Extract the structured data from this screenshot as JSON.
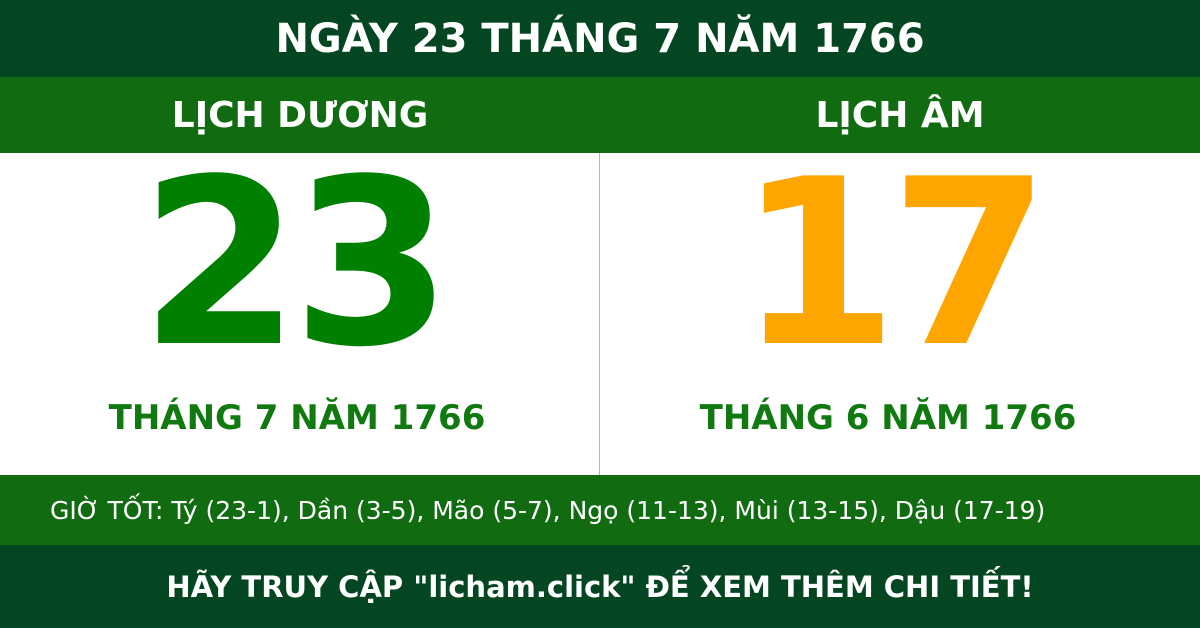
{
  "title": "NGÀY 23 THÁNG 7 NĂM 1766",
  "solar": {
    "label": "LỊCH DƯƠNG",
    "day": "23",
    "month_year": "THÁNG 7 NĂM 1766"
  },
  "lunar": {
    "label": "LỊCH ÂM",
    "day": "17",
    "month_year": "THÁNG 6 NĂM 1766"
  },
  "good_hours": "GIỜ TỐT: Tý (23-1), Dần (3-5), Mão (5-7), Ngọ (11-13), Mùi (13-15), Dậu (17-19)",
  "footer": "HÃY TRUY CẬP \"licham.click\" ĐỂ XEM THÊM CHI TIẾT!",
  "colors": {
    "dark": "#034621",
    "band": "#116c11",
    "solar_day": "#008000",
    "lunar_day": "#ffa500"
  }
}
